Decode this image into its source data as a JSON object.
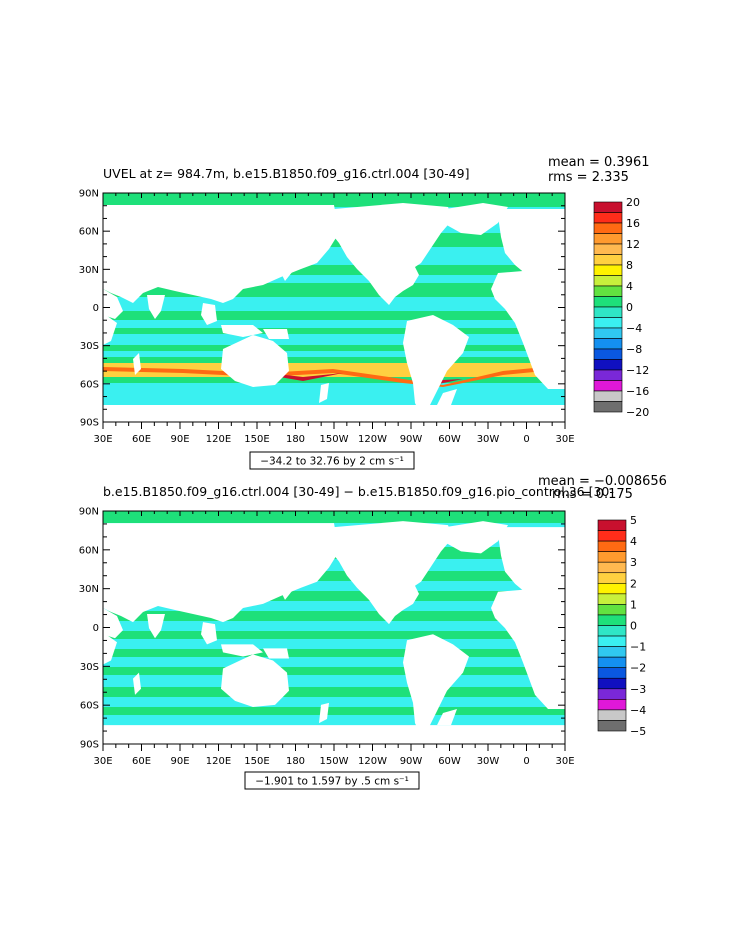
{
  "panels": [
    {
      "id": "top",
      "title": "UVEL at z= 984.7m, b.e15.B1850.f09_g16.ctrl.004 [30-49]",
      "stats": {
        "mean": "mean = 0.3961",
        "rms": "rms = 2.335"
      },
      "range_label": "−34.2 to 32.76 by 2 cm s⁻¹",
      "colorbar": {
        "labels": [
          "20",
          "16",
          "12",
          "8",
          "4",
          "0",
          "−4",
          "−8",
          "−12",
          "−16",
          "−20"
        ],
        "colors": [
          "#c8102e",
          "#ff2d1a",
          "#ff6a13",
          "#ff9a2e",
          "#ffb950",
          "#ffd040",
          "#fff200",
          "#c8f03c",
          "#62e240",
          "#1ee07a",
          "#2fe6c6",
          "#3af0f0",
          "#30c8f0",
          "#1490f0",
          "#0a58e0",
          "#1010c0",
          "#7a28d8",
          "#e018d8",
          "#c8c8c8",
          "#6e6e6e"
        ]
      }
    },
    {
      "id": "bottom",
      "title": "b.e15.B1850.f09_g16.ctrl.004 [30-49] − b.e15.B1850.f09_g16.pio_control.36 [30-",
      "stats": {
        "mean": "mean = −0.008656",
        "rms": "rms = 0.175"
      },
      "range_label": "−1.901 to 1.597 by .5 cm s⁻¹",
      "colorbar": {
        "labels": [
          "5",
          "4",
          "3",
          "2",
          "1",
          "0",
          "−1",
          "−2",
          "−3",
          "−4",
          "−5"
        ],
        "colors": [
          "#c8102e",
          "#ff2d1a",
          "#ff6a13",
          "#ff9a2e",
          "#ffb950",
          "#ffd040",
          "#fff200",
          "#c8f03c",
          "#62e240",
          "#1ee07a",
          "#2fe6c6",
          "#3af0f0",
          "#30c8f0",
          "#1490f0",
          "#0a58e0",
          "#1010c0",
          "#7a28d8",
          "#e018d8",
          "#c8c8c8",
          "#6e6e6e"
        ]
      }
    }
  ],
  "axes": {
    "lat_labels": [
      "90N",
      "60N",
      "30N",
      "0",
      "30S",
      "60S",
      "90S"
    ],
    "lon_labels": [
      "30E",
      "60E",
      "90E",
      "120E",
      "150E",
      "180",
      "150W",
      "120W",
      "90W",
      "60W",
      "30W",
      "0",
      "30E"
    ]
  },
  "map_colors": {
    "ocean_primary": "#3af0f0",
    "ocean_secondary": "#1ee07a",
    "ocean_strong": "#ffd040",
    "ocean_peak": "#ff6a13",
    "land": "#ffffff"
  }
}
